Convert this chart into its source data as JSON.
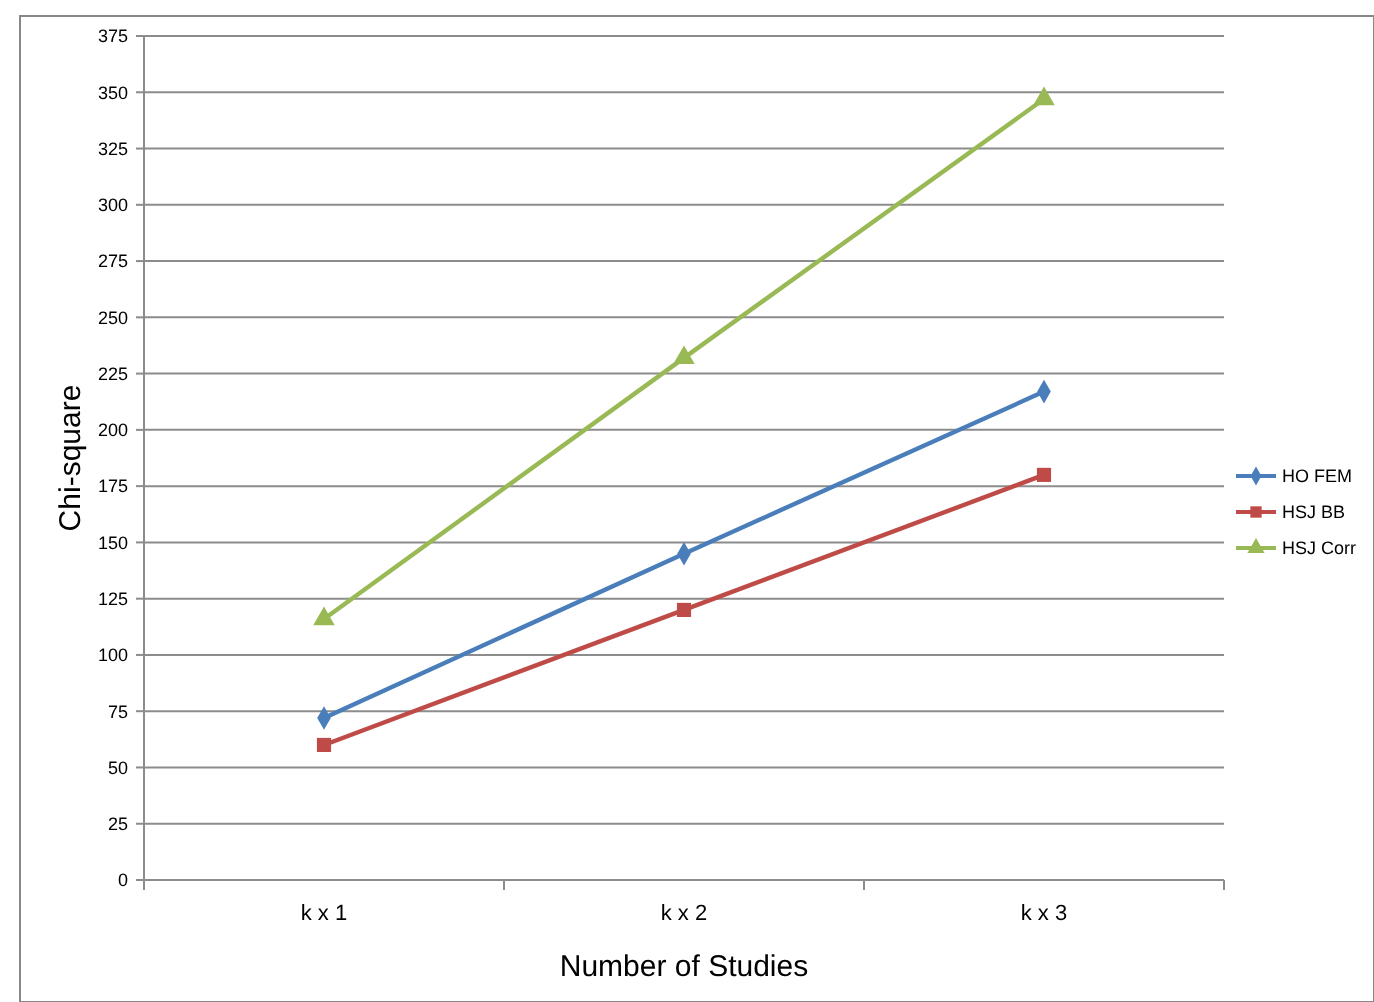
{
  "chart_data": {
    "type": "line",
    "xlabel": "Number of Studies",
    "ylabel": "Chi-square",
    "categories": [
      "k x 1",
      "k x 2",
      "k x 3"
    ],
    "series": [
      {
        "name": "HO FEM",
        "color": "#4a7ebb",
        "marker": "diamond",
        "values": [
          72,
          145,
          217
        ]
      },
      {
        "name": "HSJ BB",
        "color": "#be4b48",
        "marker": "square",
        "values": [
          60,
          120,
          180
        ]
      },
      {
        "name": "HSJ Corr",
        "color": "#98b954",
        "marker": "triangle",
        "values": [
          116,
          232,
          347
        ]
      }
    ],
    "ylim": [
      0,
      375
    ],
    "yticks": [
      0,
      25,
      50,
      75,
      100,
      125,
      150,
      175,
      200,
      225,
      250,
      275,
      300,
      325,
      350,
      375
    ],
    "grid": "y",
    "legend": "right"
  }
}
